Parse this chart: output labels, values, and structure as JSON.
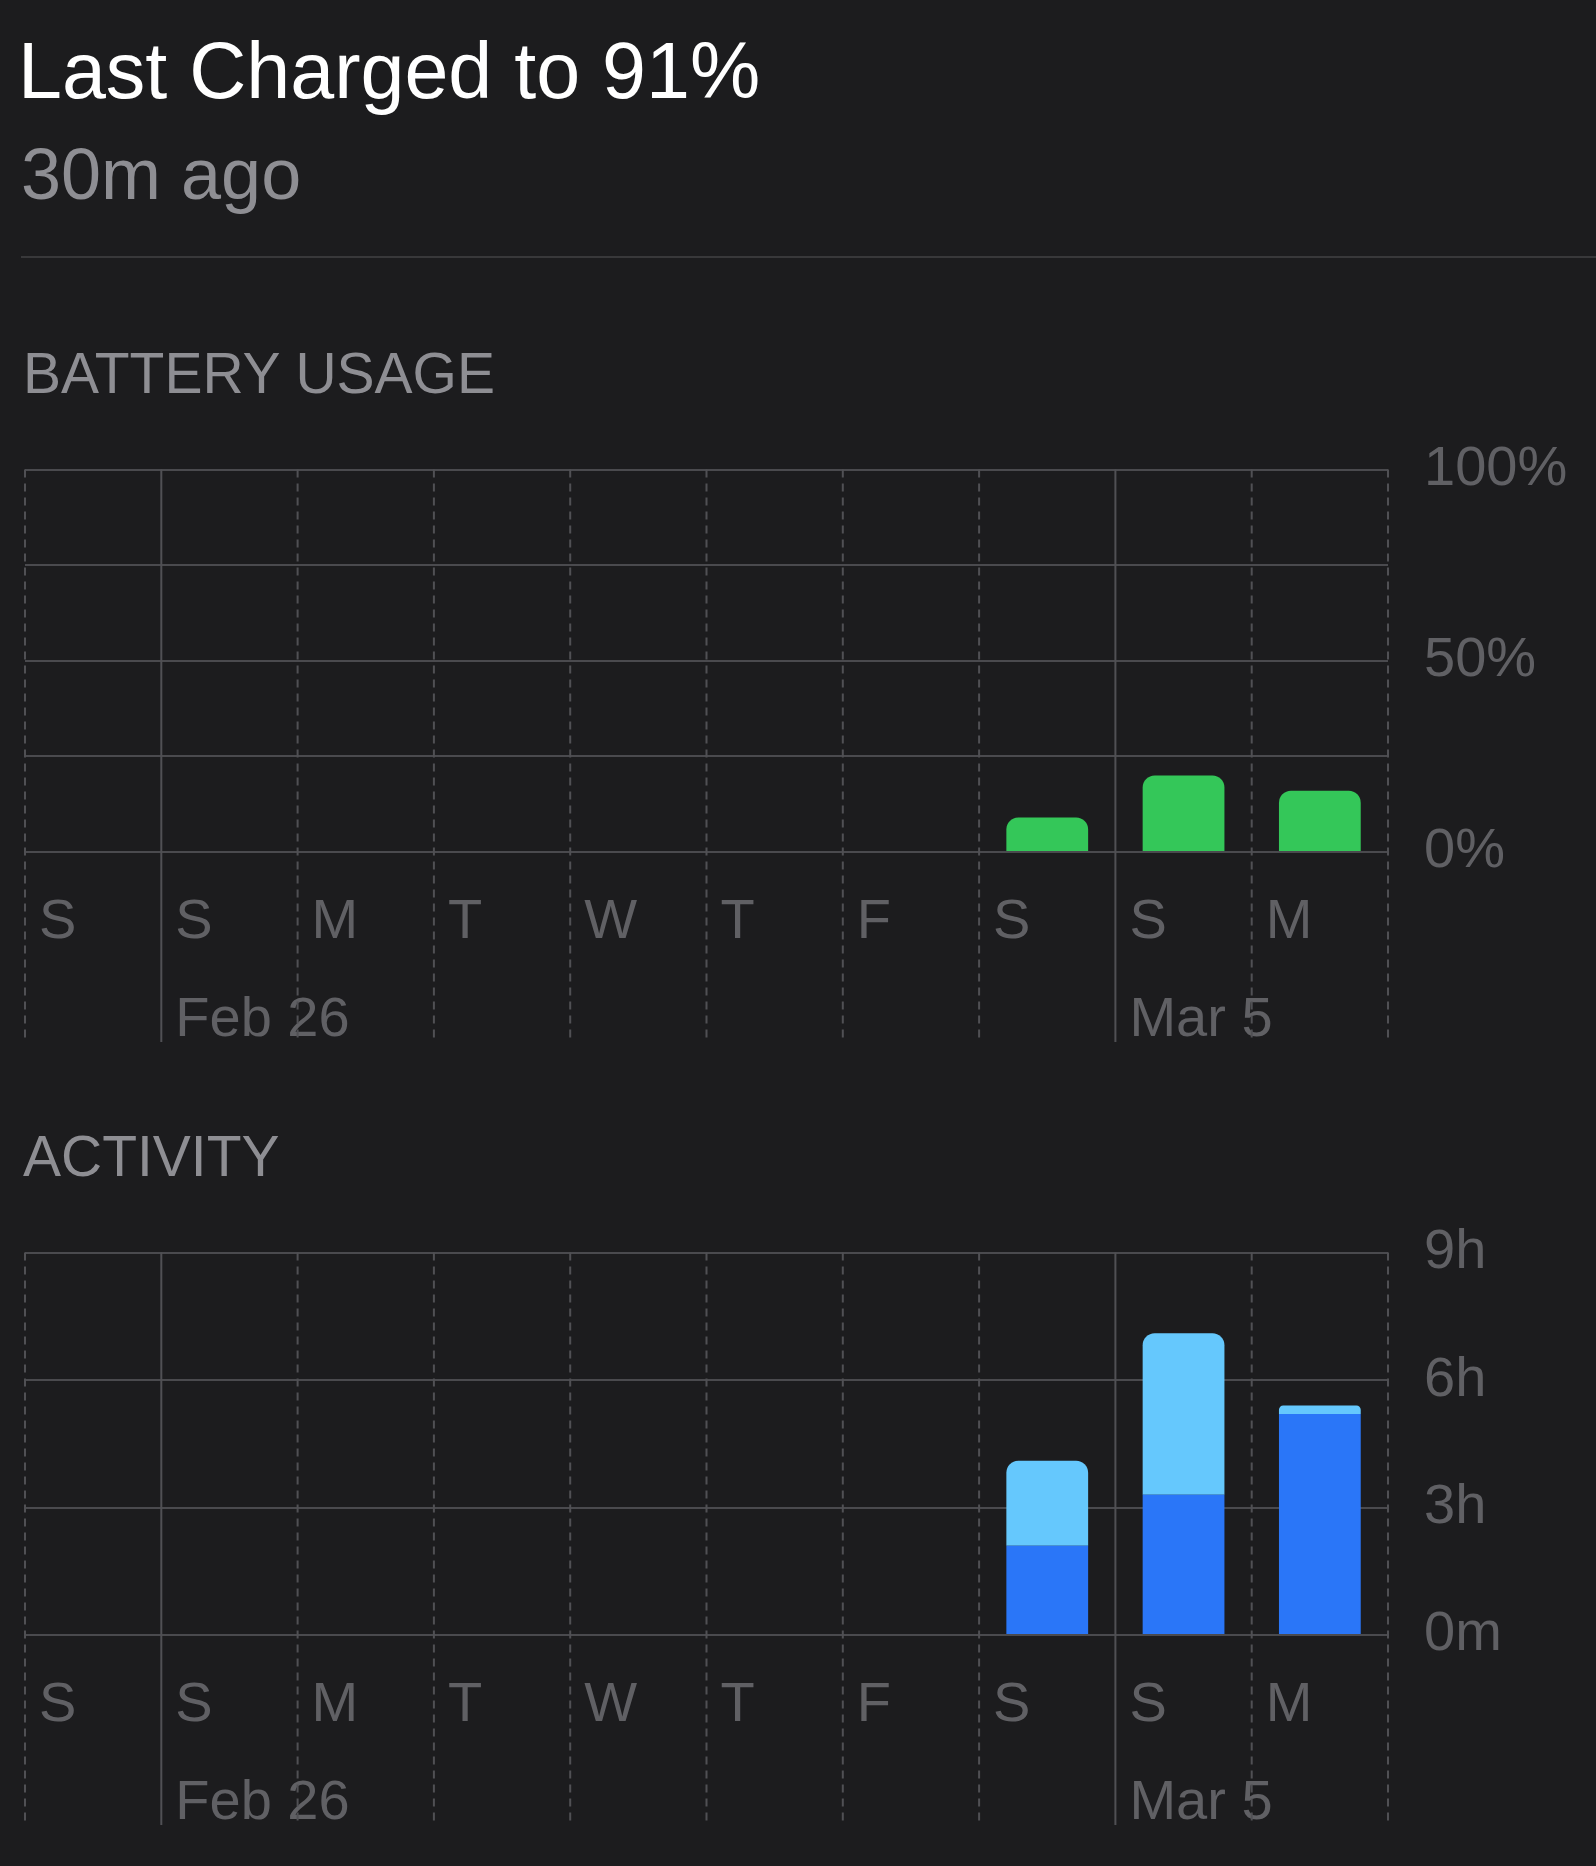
{
  "chart_data": [
    {
      "type": "other",
      "title": "Last Charged to 91%",
      "subtitle": "30m ago"
    },
    {
      "type": "bar",
      "title": "BATTERY USAGE",
      "categories": [
        "S",
        "S\nFeb 26",
        "M",
        "T",
        "W",
        "T",
        "F",
        "S",
        "S\nMar 5",
        "M"
      ],
      "values": [
        null,
        null,
        null,
        null,
        null,
        null,
        null,
        9,
        20,
        16
      ],
      "color": "#34c759",
      "ylim": [
        0,
        100
      ],
      "yticks": [
        {
          "value": 0,
          "label": "0%"
        },
        {
          "value": 25,
          "label": null
        },
        {
          "value": 50,
          "label": "50%"
        },
        {
          "value": 75,
          "label": null
        },
        {
          "value": 100,
          "label": "100%"
        }
      ],
      "grid": true
    },
    {
      "type": "bar",
      "title": "ACTIVITY",
      "categories": [
        "S",
        "S\nFeb 26",
        "M",
        "T",
        "W",
        "T",
        "F",
        "S",
        "S\nMar 5",
        "M"
      ],
      "stacked": true,
      "series": [
        {
          "color": "#2a76f8",
          "values": [
            null,
            null,
            null,
            null,
            null,
            null,
            null,
            2.1,
            3.3,
            5.2
          ]
        },
        {
          "color": "#65c8fd",
          "values": [
            null,
            null,
            null,
            null,
            null,
            null,
            null,
            2.0,
            3.8,
            0.2
          ]
        }
      ],
      "ylim": [
        0,
        9
      ],
      "yticks": [
        {
          "value": 0,
          "label": "0m"
        },
        {
          "value": 3,
          "label": "3h"
        },
        {
          "value": 6,
          "label": "6h"
        },
        {
          "value": 9,
          "label": "9h"
        }
      ],
      "grid": true
    }
  ]
}
